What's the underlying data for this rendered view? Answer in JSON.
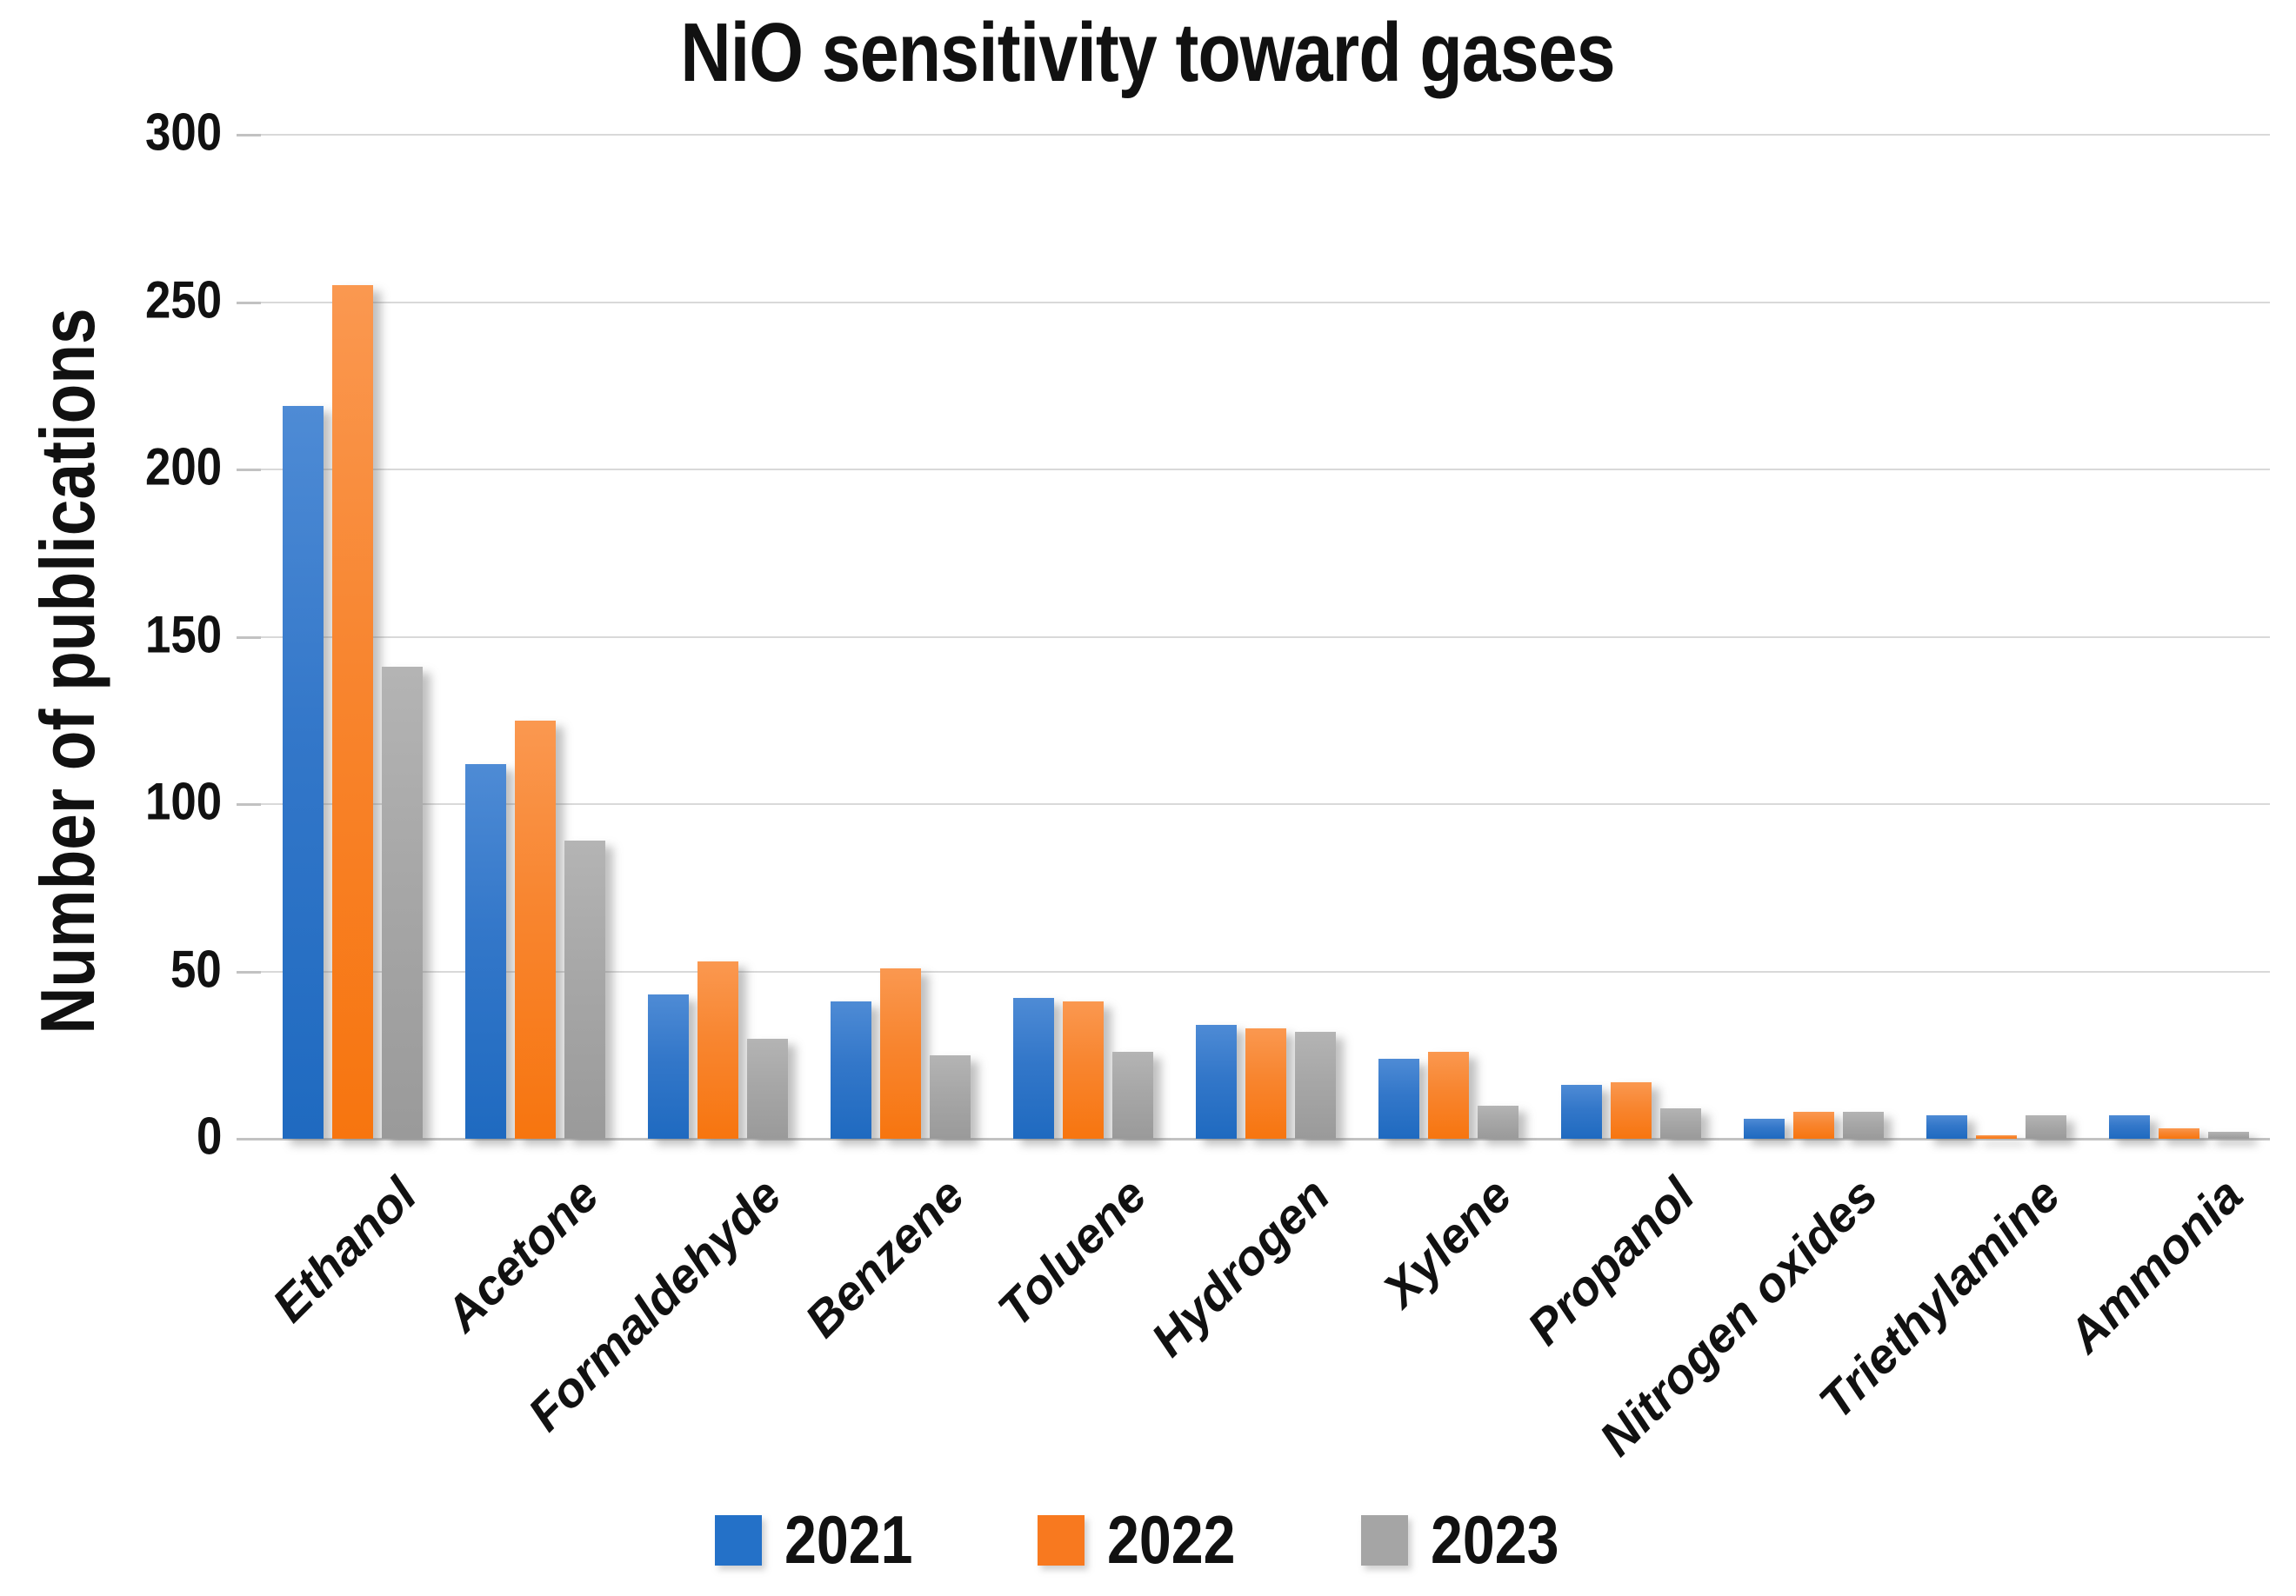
{
  "title": "NiO sensitivity toward gases",
  "colors": {
    "gridline": "#d9d9d9",
    "axis_line": "#c2c2c2",
    "text": "#111111"
  },
  "chart_data": {
    "type": "bar",
    "title": "NiO sensitivity toward gases",
    "xlabel": "",
    "ylabel": "Number of publications",
    "ylim": [
      0,
      300
    ],
    "yticks": [
      0,
      50,
      100,
      150,
      200,
      250,
      300
    ],
    "grid": true,
    "legend_position": "bottom",
    "categories": [
      "Ethanol",
      "Acetone",
      "Formaldehyde",
      "Benzene",
      "Toluene",
      "Hydrogen",
      "Xylene",
      "Propanol",
      "Nitrogen oxides",
      "Triethylamine",
      "Ammonia"
    ],
    "series": [
      {
        "name": "2021",
        "color": "#2471c8",
        "values": [
          219,
          112,
          43,
          41,
          42,
          34,
          24,
          16,
          6,
          7,
          7
        ]
      },
      {
        "name": "2022",
        "color": "#f8791f",
        "values": [
          255,
          125,
          53,
          51,
          41,
          33,
          26,
          17,
          8,
          1,
          3
        ]
      },
      {
        "name": "2023",
        "color": "#a5a5a5",
        "values": [
          141,
          89,
          30,
          25,
          26,
          32,
          10,
          9,
          8,
          7,
          2
        ]
      }
    ]
  }
}
